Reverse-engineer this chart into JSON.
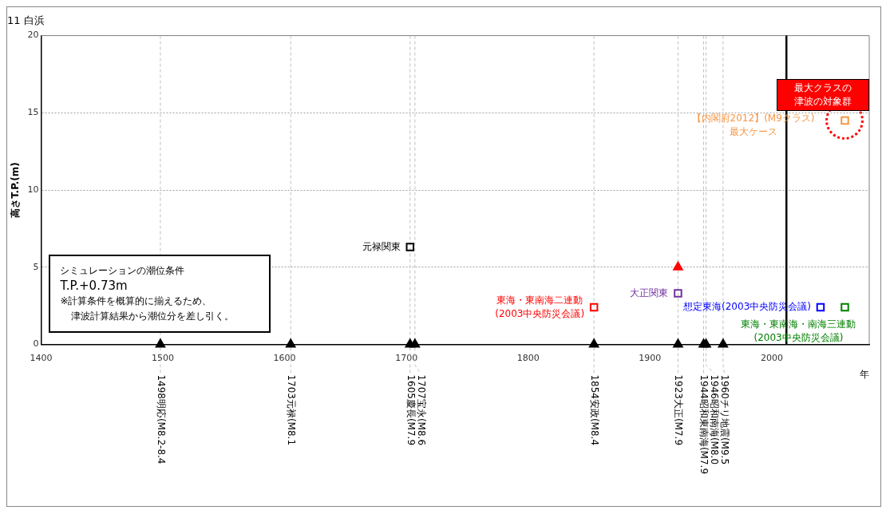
{
  "chart_data": {
    "type": "scatter",
    "title": "11 白浜",
    "ylabel": "高さT.P.(m)",
    "xlabel": "年",
    "xlim": [
      1400,
      2080
    ],
    "xticks": [
      1400,
      1500,
      1600,
      1700,
      1800,
      1900,
      2000
    ],
    "ylim": [
      0,
      20
    ],
    "yticks": [
      0,
      5,
      10,
      15,
      20
    ],
    "grid": "y",
    "legend": false,
    "marker": "square",
    "series": [
      {
        "name": "元禄関東",
        "color": "#000000",
        "x": [
          1703
        ],
        "values": [
          6.3
        ]
      },
      {
        "name": "東海・東南海二連動\n(2003中央防災会議)",
        "color": "#ff0000",
        "x": [
          1854
        ],
        "values": [
          2.4
        ]
      },
      {
        "name": "大正関東",
        "color": "#7030a0",
        "x": [
          1923
        ],
        "values": [
          3.3
        ]
      },
      {
        "name": "想定東海(2003中央防災会議)",
        "color": "#0000ff",
        "x": [
          2040
        ],
        "values": [
          2.4
        ]
      },
      {
        "name": "東海・東南海・南海三連動\n(2003中央防災会議)",
        "color": "#008000",
        "x": [
          2060
        ],
        "values": [
          2.4
        ]
      },
      {
        "name": "【内閣府2012】(M9クラス)\n最大ケース",
        "color": "#f79646",
        "x": [
          2060
        ],
        "values": [
          14.5
        ]
      },
      {
        "color": "#ff0000",
        "marker": "triangle",
        "x": [
          1923
        ],
        "values": [
          5.0
        ]
      },
      {
        "color": "#000000",
        "marker": "triangle",
        "x": [
          1498,
          1605,
          1703,
          1707,
          1854,
          1923,
          1944,
          1946,
          1960
        ],
        "values": [
          0,
          0,
          0,
          0,
          0,
          0,
          0,
          0,
          0
        ]
      }
    ],
    "ref_lines": [
      {
        "axis": "x",
        "value": 1498,
        "label": "1498明応(M8.2-8.4",
        "color": "#c0c0c0",
        "line_style": "dashed"
      },
      {
        "axis": "x",
        "value": 1605,
        "label": "1703元禄(M8.1",
        "color": "#c0c0c0",
        "line_style": "dashed"
      },
      {
        "axis": "x",
        "value": 1703,
        "label": "1605慶長(M7.9",
        "color": "#c0c0c0",
        "line_style": "dashed"
      },
      {
        "axis": "x",
        "value": 1707,
        "label": "1707宝永(M8.6",
        "color": "#c0c0c0",
        "line_style": "dashed"
      },
      {
        "axis": "x",
        "value": 1854,
        "label": "1854安政(M8.4",
        "color": "#c0c0c0",
        "line_style": "dashed"
      },
      {
        "axis": "x",
        "value": 1923,
        "label": "1923大正(M7.9",
        "color": "#c0c0c0",
        "line_style": "dashed"
      },
      {
        "axis": "x",
        "value": 1944,
        "label": "1944昭和東南海(M7.9",
        "color": "#c0c0c0",
        "line_style": "dashed"
      },
      {
        "axis": "x",
        "value": 1946,
        "label": "1946昭和南海(M8.0",
        "color": "#c0c0c0",
        "line_style": "dashed"
      },
      {
        "axis": "x",
        "value": 1960,
        "label": "1960チリ地震(M9.5",
        "color": "#c0c0c0",
        "line_style": "dashed"
      },
      {
        "axis": "x",
        "value": 2012,
        "color": "#000000",
        "line_style": "solid"
      }
    ],
    "annotations": [
      "シミュレーションの潮位条件",
      "T.P.+0.73m",
      "※計算条件を概算的に揃えるため、",
      "津波計算結果から潮位分を差し引く。",
      "最大クラスの津波の対象群"
    ]
  }
}
